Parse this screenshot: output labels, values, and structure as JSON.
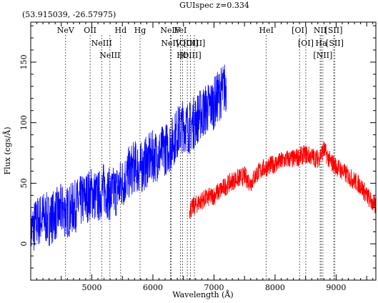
{
  "chart_data": {
    "type": "line",
    "title": "GUIspec z=0.334",
    "coords_text": "(53.915039, -26.57975)",
    "xlabel": "Wavelength (Å)",
    "ylabel": "Flux (cgs/Å)",
    "xlim": [
      4000,
      9650
    ],
    "ylim": [
      -30,
      183
    ],
    "xticks": [
      5000,
      6000,
      7000,
      8000,
      9000
    ],
    "yticks": [
      0,
      50,
      100,
      150
    ],
    "grid": false,
    "series": [
      {
        "color": "#0000ff",
        "x": [
          4000,
          4100,
          4200,
          4300,
          4400,
          4500,
          4600,
          4700,
          4800,
          4900,
          5000,
          5100,
          5200,
          5300,
          5400,
          5500,
          5600,
          5700,
          5800,
          5900,
          6000,
          6100,
          6200,
          6300,
          6400,
          6500,
          6600,
          6700,
          6800,
          6900,
          7000,
          7100,
          7200
        ],
        "y": [
          10,
          18,
          22,
          20,
          24,
          28,
          26,
          30,
          34,
          38,
          42,
          38,
          46,
          40,
          44,
          50,
          58,
          64,
          62,
          68,
          72,
          74,
          78,
          82,
          92,
          98,
          96,
          102,
          108,
          112,
          116,
          124,
          130
        ],
        "noise": 22
      },
      {
        "color": "#ff0000",
        "x": [
          6600,
          6700,
          6800,
          6900,
          7000,
          7100,
          7200,
          7300,
          7400,
          7500,
          7600,
          7700,
          7800,
          7900,
          8000,
          8100,
          8200,
          8300,
          8400,
          8500,
          8600,
          8700,
          8800,
          8900,
          9000,
          9100,
          9200,
          9300,
          9400,
          9500,
          9650
        ],
        "y": [
          28,
          32,
          36,
          38,
          40,
          44,
          48,
          52,
          54,
          56,
          50,
          58,
          62,
          64,
          66,
          68,
          70,
          70,
          72,
          74,
          72,
          70,
          78,
          68,
          64,
          60,
          56,
          52,
          48,
          40,
          30
        ],
        "noise": 8
      }
    ],
    "emission_lines": [
      {
        "label": "NeV",
        "x": 4571,
        "row": 0
      },
      {
        "label": "OII",
        "x": 4972,
        "row": 0
      },
      {
        "label": "NeIII",
        "x": 5161,
        "row": 1
      },
      {
        "label": "NeIII",
        "x": 5297,
        "row": 2
      },
      {
        "label": "Hd",
        "x": 5472,
        "row": 0
      },
      {
        "label": "Hg",
        "x": 5790,
        "row": 0
      },
      {
        "label": "NeIV",
        "x": 6288,
        "row": 0
      },
      {
        "label": "NeIV",
        "x": 6299,
        "row": 1
      },
      {
        "label": "FeI",
        "x": 6450,
        "row": 0
      },
      {
        "label": "Hb",
        "x": 6485,
        "row": 2
      },
      {
        "label": "[OIII]",
        "x": 6563,
        "row": 1
      },
      {
        "label": "[OIII]",
        "x": 6612,
        "row": 2
      },
      {
        "label": "[OIII]",
        "x": 6679,
        "row": 1
      },
      {
        "label": "HeI",
        "x": 7857,
        "row": 0
      },
      {
        "label": "[OI]",
        "x": 8400,
        "row": 0
      },
      {
        "label": "[OI]",
        "x": 8503,
        "row": 1
      },
      {
        "label": "NII",
        "x": 8738,
        "row": 0
      },
      {
        "label": "Ha",
        "x": 8756,
        "row": 1
      },
      {
        "label": "[NII]",
        "x": 8783,
        "row": 2
      },
      {
        "label": "[SII]",
        "x": 8960,
        "row": 0
      },
      {
        "label": "[SII]",
        "x": 8977,
        "row": 1
      }
    ]
  }
}
